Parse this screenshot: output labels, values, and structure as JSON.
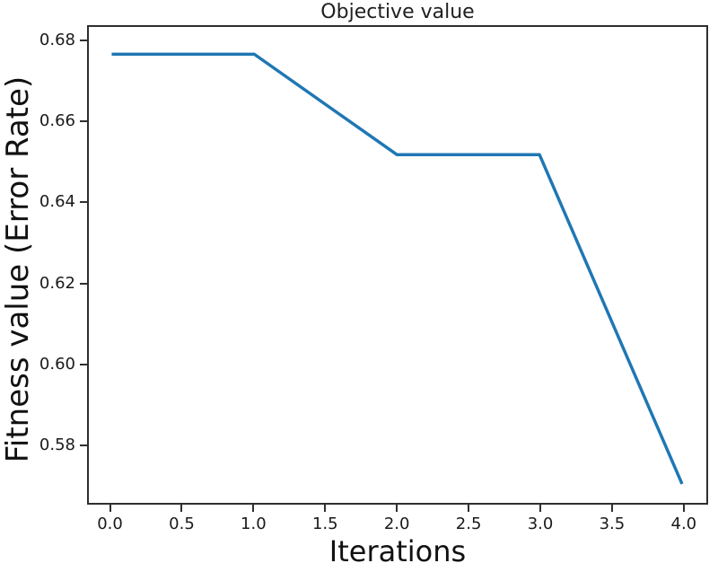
{
  "chart_data": {
    "type": "line",
    "title": "Objective value",
    "xlabel": "Iterations",
    "ylabel": "Fitness value (Error Rate)",
    "x": [
      0.0,
      1.0,
      2.0,
      3.0,
      4.0
    ],
    "y": [
      0.677,
      0.677,
      0.652,
      0.652,
      0.57
    ],
    "line_color": "#1f77b4",
    "xlim": [
      -0.16,
      4.17
    ],
    "ylim": [
      0.5653,
      0.6838
    ],
    "xticks": [
      0.0,
      0.5,
      1.0,
      1.5,
      2.0,
      2.5,
      3.0,
      3.5,
      4.0
    ],
    "xtick_labels": [
      "0.0",
      "0.5",
      "1.0",
      "1.5",
      "2.0",
      "2.5",
      "3.0",
      "3.5",
      "4.0"
    ],
    "yticks": [
      0.58,
      0.6,
      0.62,
      0.64,
      0.66,
      0.68
    ],
    "ytick_labels": [
      "0.58",
      "0.60",
      "0.62",
      "0.64",
      "0.66",
      "0.68"
    ],
    "grid": false,
    "legend_position": "none",
    "background_color": "#ffffff"
  }
}
